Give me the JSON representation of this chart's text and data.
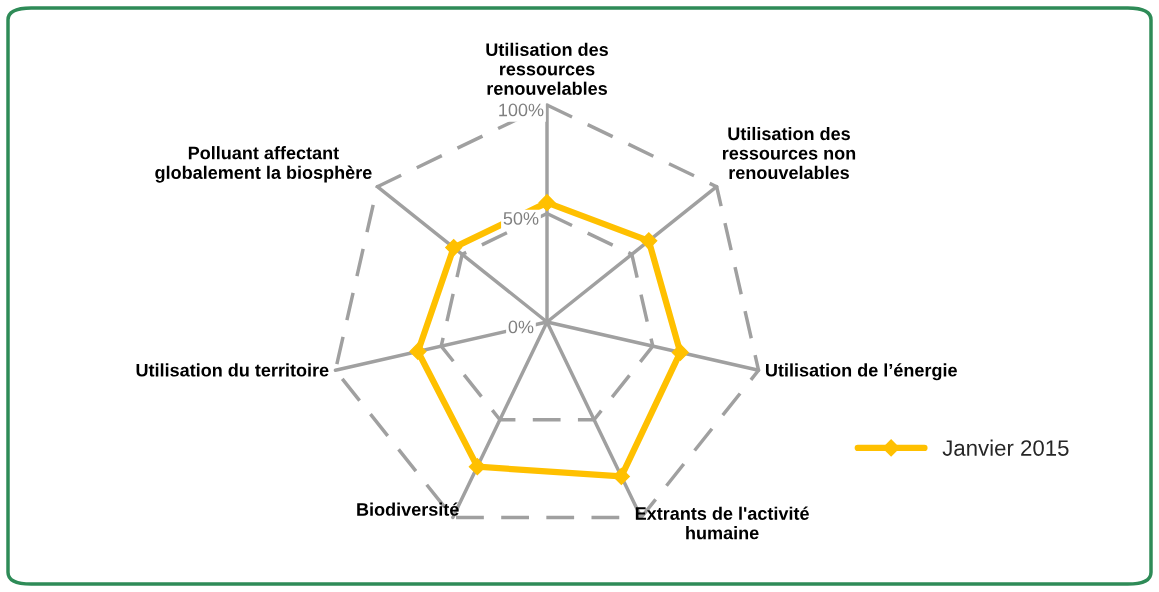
{
  "chart_data": {
    "type": "radar",
    "categories": [
      "Utilisation des\nressources\nrenouvelables",
      "Utilisation des\nressources non\nrenouvelables",
      "Utilisation de l’énergie",
      "Extrants de l'activité\nhumaine",
      "Biodiversité",
      "Utilisation du territoire",
      "Polluant affectant\nglobalement la biosphère"
    ],
    "series": [
      {
        "name": "Janvier 2015",
        "color": "#ffc000",
        "values": [
          55,
          60,
          63,
          79,
          74,
          61,
          55
        ]
      }
    ],
    "ylim": [
      0,
      100
    ],
    "yticks": [
      {
        "value": 0,
        "label": "0%"
      },
      {
        "value": 50,
        "label": "50%"
      },
      {
        "value": 100,
        "label": "100%"
      }
    ],
    "grid": true,
    "legend": "right",
    "marker": "diamond",
    "line_style": "solid"
  }
}
